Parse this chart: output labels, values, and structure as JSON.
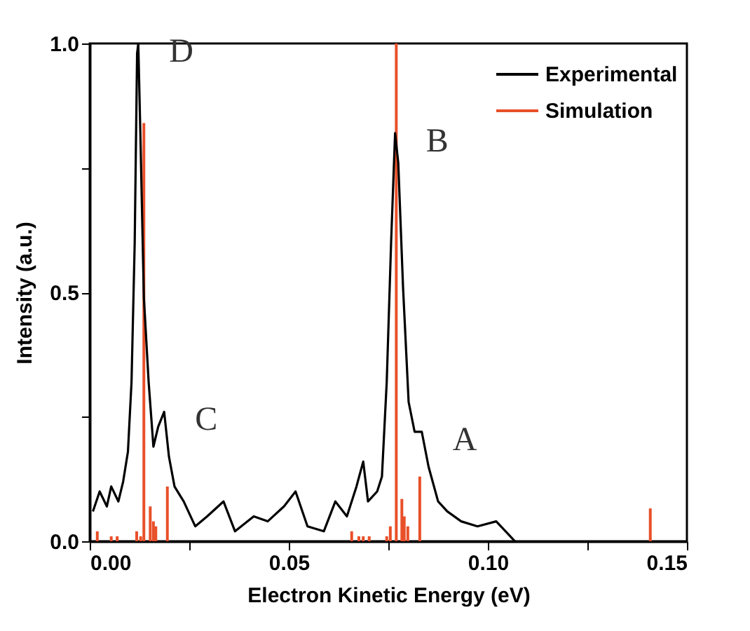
{
  "chart_data": {
    "type": "line",
    "xlabel": "Electron Kinetic Energy (eV)",
    "ylabel": "Intensity (a.u.)",
    "xlim": [
      0,
      0.15
    ],
    "ylim": [
      0,
      1
    ],
    "xticks": [
      {
        "value": 0,
        "label": "0.00"
      },
      {
        "value": 0.025,
        "label": null
      },
      {
        "value": 0.05,
        "label": "0.05"
      },
      {
        "value": 0.075,
        "label": null
      },
      {
        "value": 0.1,
        "label": "0.10"
      },
      {
        "value": 0.125,
        "label": null
      },
      {
        "value": 0.15,
        "label": "0.15"
      }
    ],
    "yticks": [
      {
        "value": 0,
        "label": "0.0"
      },
      {
        "value": 0.25,
        "label": null
      },
      {
        "value": 0.5,
        "label": "0.5"
      },
      {
        "value": 0.75,
        "label": null
      },
      {
        "value": 1,
        "label": "1.0"
      }
    ],
    "legend": "top right",
    "series": [
      {
        "name": "Experimental",
        "color": "#000000",
        "x": [
          0.0008,
          0.0025,
          0.0043,
          0.0054,
          0.0072,
          0.0084,
          0.0096,
          0.0105,
          0.0113,
          0.0119,
          0.0122,
          0.0128,
          0.0136,
          0.0148,
          0.016,
          0.0172,
          0.0187,
          0.0199,
          0.0213,
          0.0236,
          0.0265,
          0.0295,
          0.0336,
          0.0365,
          0.0412,
          0.0447,
          0.0488,
          0.0517,
          0.0547,
          0.0588,
          0.0617,
          0.0646,
          0.067,
          0.0687,
          0.0699,
          0.0722,
          0.0734,
          0.0746,
          0.0757,
          0.0767,
          0.0775,
          0.0787,
          0.0801,
          0.0816,
          0.0834,
          0.0851,
          0.0875,
          0.0898,
          0.0933,
          0.0974,
          0.1021,
          0.1068
        ],
        "values": [
          0.06,
          0.1,
          0.07,
          0.11,
          0.08,
          0.12,
          0.18,
          0.32,
          0.6,
          0.98,
          1.0,
          0.79,
          0.49,
          0.32,
          0.19,
          0.23,
          0.26,
          0.17,
          0.11,
          0.08,
          0.03,
          0.05,
          0.08,
          0.02,
          0.05,
          0.04,
          0.07,
          0.1,
          0.03,
          0.02,
          0.08,
          0.05,
          0.11,
          0.16,
          0.08,
          0.1,
          0.13,
          0.32,
          0.6,
          0.82,
          0.76,
          0.51,
          0.28,
          0.22,
          0.22,
          0.15,
          0.08,
          0.06,
          0.04,
          0.03,
          0.04,
          0.0
        ]
      },
      {
        "name": "Simulation",
        "type": "bar",
        "color": "#e8502a",
        "x": [
          0.0019,
          0.0054,
          0.0069,
          0.0118,
          0.0128,
          0.0136,
          0.0152,
          0.016,
          0.0166,
          0.0195,
          0.0658,
          0.0676,
          0.0687,
          0.0702,
          0.0746,
          0.0755,
          0.077,
          0.0784,
          0.079,
          0.0799,
          0.0829,
          0.1408
        ],
        "values": [
          0.02,
          0.01,
          0.01,
          0.02,
          0.01,
          0.84,
          0.07,
          0.04,
          0.03,
          0.11,
          0.02,
          0.01,
          0.01,
          0.01,
          0.01,
          0.03,
          1.0,
          0.085,
          0.05,
          0.03,
          0.13,
          0.066
        ]
      }
    ],
    "annotations": [
      {
        "text": "D",
        "x": 0.0122,
        "y": 1.0
      },
      {
        "text": "C",
        "x": 0.0187,
        "y": 0.26
      },
      {
        "text": "B",
        "x": 0.0767,
        "y": 0.82
      },
      {
        "text": "A",
        "x": 0.0834,
        "y": 0.22
      }
    ]
  }
}
